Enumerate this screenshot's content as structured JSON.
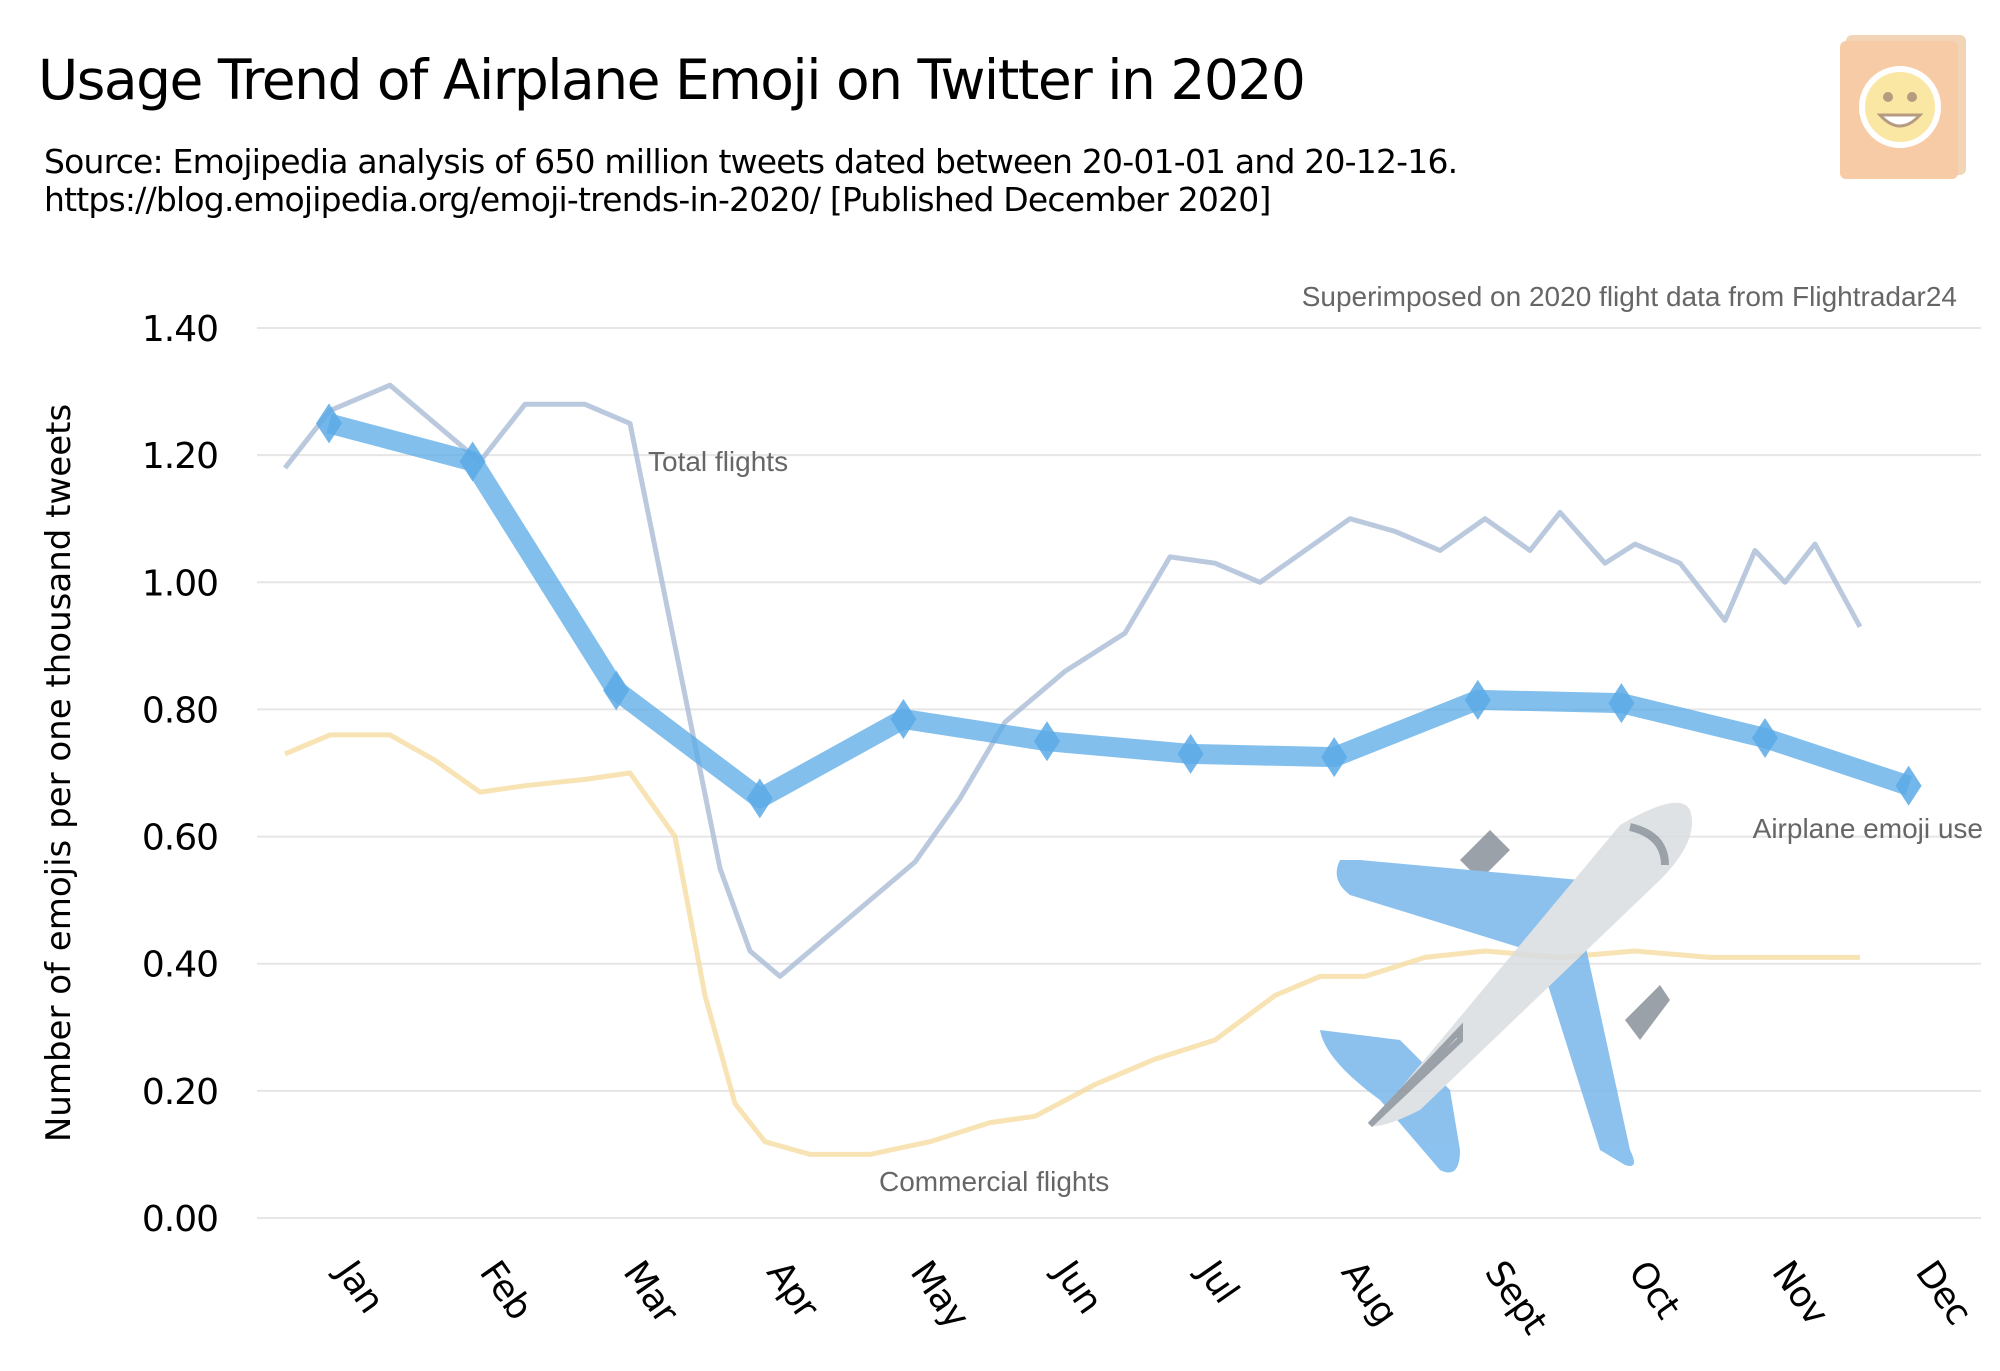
{
  "header": {
    "title": "Usage Trend of Airplane Emoji on Twitter in 2020",
    "source_line": "Source: Emojipedia analysis of 650 million tweets dated between 20-01-01 and 20-12-16.",
    "url_line": "https://blog.emojipedia.org/emoji-trends-in-2020/ [Published December 2020]"
  },
  "logo": {
    "name": "emojipedia-logo-icon"
  },
  "chart_data": {
    "type": "line",
    "title": "Usage Trend of Airplane Emoji on Twitter in 2020",
    "ylabel": "Number of emojis per one thousand tweets",
    "xlabel": "",
    "ylim": [
      0,
      1.4
    ],
    "yticks": [
      "0.00",
      "0.20",
      "0.40",
      "0.60",
      "0.80",
      "1.00",
      "1.20",
      "1.40"
    ],
    "categories": [
      "Jan",
      "Feb",
      "Mar",
      "Apr",
      "May",
      "Jun",
      "Jul",
      "Aug",
      "Sept",
      "Oct",
      "Nov",
      "Dec"
    ],
    "grid": true,
    "series": [
      {
        "name": "Airplane emoji use",
        "color": "#5aa9e6",
        "values": [
          1.25,
          1.19,
          0.83,
          0.66,
          0.785,
          0.75,
          0.73,
          0.725,
          0.815,
          0.81,
          0.755,
          0.68
        ]
      }
    ],
    "annotations": {
      "overlay_note": "Superimposed on 2020 flight data from Flightradar24",
      "total_flights": "Total flights",
      "commercial_flights": "Commercial flights",
      "emoji_series": "Airplane emoji use"
    },
    "background_colors": {
      "total_flights": "#a9bcd6",
      "commercial_flights": "#f5dca0"
    }
  }
}
